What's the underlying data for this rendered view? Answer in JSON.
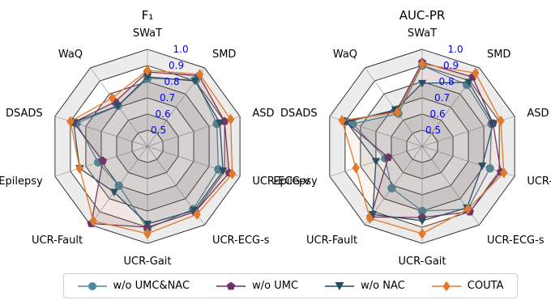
{
  "chart_data": [
    {
      "type": "radar",
      "title": "F₁",
      "axes": [
        "SWaT",
        "SMD",
        "ASD",
        "UCR-ECG-v",
        "UCR-ECG-s",
        "UCR-Gait",
        "UCR-Fault",
        "Epilepsy",
        "DSADS",
        "WaQ"
      ],
      "radial_ticks": [
        "0.5",
        "0.6",
        "0.7",
        "0.8",
        "0.9",
        "1.0"
      ],
      "rlim": [
        0.4,
        1.0
      ],
      "series": [
        {
          "name": "w/o UMC&NAC",
          "values": [
            0.82,
            0.91,
            0.85,
            0.86,
            0.88,
            0.91,
            0.7,
            0.72,
            0.86,
            0.71
          ]
        },
        {
          "name": "w/o UMC",
          "values": [
            0.86,
            0.94,
            0.9,
            0.93,
            0.9,
            0.9,
            0.99,
            0.69,
            0.88,
            0.74
          ]
        },
        {
          "name": "w/o NAC",
          "values": [
            0.83,
            0.9,
            0.87,
            0.89,
            0.89,
            0.88,
            0.75,
            0.84,
            0.88,
            0.71
          ]
        },
        {
          "name": "COUTA",
          "values": [
            0.87,
            0.95,
            0.94,
            0.95,
            0.92,
            0.94,
            0.97,
            0.84,
            0.9,
            0.77
          ]
        }
      ]
    },
    {
      "type": "radar",
      "title": "AUC-PR",
      "axes": [
        "SWaT",
        "SMD",
        "ASD",
        "UCR-ECG-v",
        "UCR-ECG-s",
        "UCR-Gait",
        "UCR-Fault",
        "Epilepsy",
        "DSADS",
        "WaQ"
      ],
      "radial_ticks": [
        "0.5",
        "0.6",
        "0.7",
        "0.8",
        "0.9",
        "1.0"
      ],
      "rlim": [
        0.4,
        1.0
      ],
      "series": [
        {
          "name": "w/o UMC&NAC",
          "values": [
            0.9,
            0.87,
            0.85,
            0.84,
            0.88,
            0.8,
            0.72,
            0.64,
            0.85,
            0.65
          ]
        },
        {
          "name": "w/o UMC",
          "values": [
            0.92,
            0.93,
            0.86,
            0.91,
            0.9,
            0.84,
            0.94,
            0.62,
            0.9,
            0.67
          ]
        },
        {
          "name": "w/o NAC",
          "values": [
            0.79,
            0.89,
            0.86,
            0.79,
            0.87,
            0.86,
            0.92,
            0.7,
            0.89,
            0.68
          ]
        },
        {
          "name": "COUTA",
          "values": [
            0.91,
            0.96,
            0.91,
            0.93,
            0.88,
            0.94,
            0.95,
            0.83,
            0.92,
            0.66
          ]
        }
      ]
    }
  ],
  "series_styles": [
    {
      "color": "#4a8c9e",
      "marker": "circle"
    },
    {
      "color": "#6b3068",
      "marker": "pentagon"
    },
    {
      "color": "#1b4b6b",
      "marker": "triangle-down"
    },
    {
      "color": "#e07b2e",
      "marker": "diamond"
    }
  ],
  "legend": {
    "placement": "bottom",
    "items": [
      "w/o UMC&NAC",
      "w/o UMC",
      "w/o NAC",
      "COUTA"
    ]
  }
}
